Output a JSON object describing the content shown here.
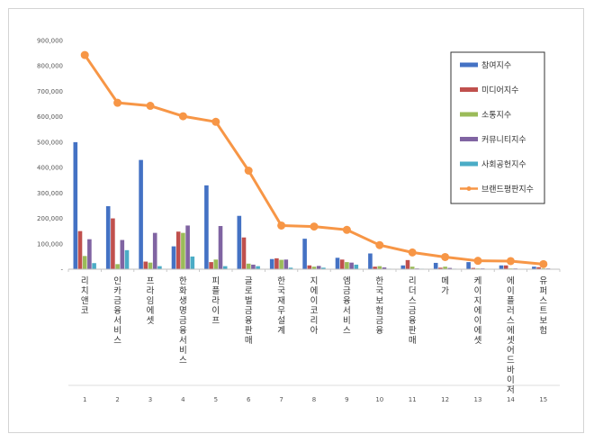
{
  "chart_data": {
    "type": "bar",
    "title": "",
    "xlabel": "",
    "ylabel": "",
    "ylim": [
      0,
      900000
    ],
    "yticks": [
      "-",
      "100,000",
      "200,000",
      "300,000",
      "400,000",
      "500,000",
      "600,000",
      "700,000",
      "800,000",
      "900,000"
    ],
    "categories": [
      "리치앤코",
      "인카금융서비스",
      "프라임에셋",
      "한화생명금융서비스",
      "피플라이프",
      "글로벌금융판매",
      "한국재무설계",
      "지에이코리아",
      "엠금융서비스",
      "한국보험금융",
      "리더스금융판매",
      "메가",
      "케이지에이에셋",
      "에이플러스에셋어드바이저",
      "유퍼스트보험"
    ],
    "ranks": [
      "1",
      "2",
      "3",
      "4",
      "5",
      "6",
      "7",
      "8",
      "9",
      "10",
      "11",
      "12",
      "13",
      "14",
      "15"
    ],
    "series": [
      {
        "name": "참여지수",
        "color": "#4472c4",
        "values": [
          500000,
          248000,
          430000,
          90000,
          330000,
          210000,
          40000,
          120000,
          45000,
          62000,
          15000,
          25000,
          28000,
          15000,
          10000
        ]
      },
      {
        "name": "미디어지수",
        "color": "#c0504d",
        "values": [
          150000,
          200000,
          30000,
          148000,
          28000,
          125000,
          43000,
          15000,
          38000,
          10000,
          36000,
          6000,
          5000,
          15000,
          8000
        ]
      },
      {
        "name": "소통지수",
        "color": "#9bbb59",
        "values": [
          52000,
          20000,
          26000,
          143000,
          38000,
          22000,
          37000,
          10000,
          28000,
          12000,
          10000,
          10000,
          3000,
          3000,
          3000
        ]
      },
      {
        "name": "커뮤니티지수",
        "color": "#8064a2",
        "values": [
          118000,
          115000,
          143000,
          172000,
          170000,
          18000,
          38000,
          13000,
          26000,
          7000,
          3000,
          5000,
          3000,
          3000,
          3000
        ]
      },
      {
        "name": "사회공헌지수",
        "color": "#4bacc6",
        "values": [
          24000,
          75000,
          12000,
          50000,
          12000,
          12000,
          6000,
          6000,
          18000,
          2000,
          2000,
          2000,
          1000,
          1000,
          1000
        ]
      }
    ],
    "line": {
      "name": "브랜드평판지수",
      "color": "#f79646",
      "values": [
        843000,
        655000,
        643000,
        602000,
        580000,
        388000,
        172000,
        168000,
        155000,
        95000,
        66000,
        48000,
        33000,
        32000,
        20000
      ]
    },
    "legend": "right"
  }
}
